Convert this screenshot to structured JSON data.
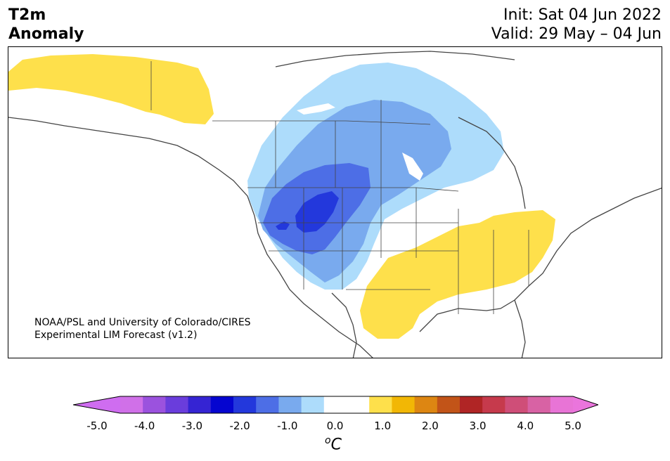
{
  "header": {
    "title_line1": "T2m",
    "title_line2": "Anomaly",
    "init_line": "Init: Sat 04 Jun 2022",
    "valid_line": "Valid: 29 May – 04 Jun"
  },
  "credit": {
    "line1": "NOAA/PSL and University of Colorado/CIRES",
    "line2": "Experimental LIM Forecast (v1.2)"
  },
  "colorbar": {
    "unit_sup": "o",
    "unit_main": "C",
    "ticks": [
      "-5.0",
      "-4.0",
      "-3.0",
      "-2.0",
      "-1.0",
      "0.0",
      "1.0",
      "2.0",
      "3.0",
      "4.0",
      "5.0"
    ],
    "colors": [
      "#d070e8",
      "#9b52de",
      "#6a3ddc",
      "#3524d3",
      "#0505d0",
      "#2338dc",
      "#4d6ee6",
      "#79aaee",
      "#addcfb",
      "#ffffff",
      "#ffffff",
      "#fee04b",
      "#f2b705",
      "#dd8612",
      "#c25418",
      "#b02525",
      "#c63a4c",
      "#cf4e78",
      "#d862a4",
      "#e874d6"
    ],
    "under_color": "#cf6df0",
    "over_color": "#ea75dc"
  },
  "map": {
    "anomaly_colors": {
      "warm_1": "#fee04b",
      "cool_1": "#addcfb",
      "cool_2": "#79aaee",
      "cool_3": "#4d6ee6",
      "cool_4": "#2338dc",
      "lake": "#ffffff"
    }
  }
}
